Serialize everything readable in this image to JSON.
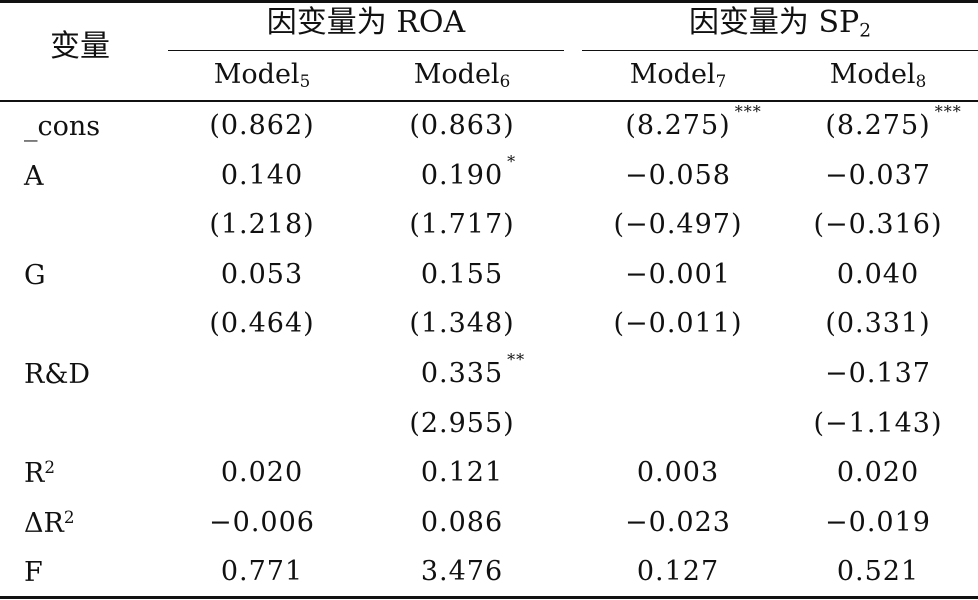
{
  "table": {
    "corner_label": "变量",
    "groups": [
      {
        "label": "因变量为 ROA",
        "sub": ""
      },
      {
        "label": "因变量为 SP",
        "sub": "2"
      }
    ],
    "models": [
      {
        "name": "Model",
        "sub": "5"
      },
      {
        "name": "Model",
        "sub": "6"
      },
      {
        "name": "Model",
        "sub": "7"
      },
      {
        "name": "Model",
        "sub": "8"
      }
    ],
    "rows": [
      {
        "label": "_cons",
        "sup": "",
        "cells": [
          {
            "v": "(0.862)",
            "star": ""
          },
          {
            "v": "(0.863)",
            "star": ""
          },
          {
            "v": "(8.275)",
            "star": "***"
          },
          {
            "v": "(8.275)",
            "star": "***"
          }
        ]
      },
      {
        "label": "A",
        "sup": "",
        "cells": [
          {
            "v": "0.140",
            "star": ""
          },
          {
            "v": "0.190",
            "star": "*"
          },
          {
            "v": "−0.058",
            "star": ""
          },
          {
            "v": "−0.037",
            "star": ""
          }
        ]
      },
      {
        "label": "",
        "sup": "",
        "cells": [
          {
            "v": "(1.218)",
            "star": ""
          },
          {
            "v": "(1.717)",
            "star": ""
          },
          {
            "v": "(−0.497)",
            "star": ""
          },
          {
            "v": "(−0.316)",
            "star": ""
          }
        ]
      },
      {
        "label": "G",
        "sup": "",
        "cells": [
          {
            "v": "0.053",
            "star": ""
          },
          {
            "v": "0.155",
            "star": ""
          },
          {
            "v": "−0.001",
            "star": ""
          },
          {
            "v": "0.040",
            "star": ""
          }
        ]
      },
      {
        "label": "",
        "sup": "",
        "cells": [
          {
            "v": "(0.464)",
            "star": ""
          },
          {
            "v": "(1.348)",
            "star": ""
          },
          {
            "v": "(−0.011)",
            "star": ""
          },
          {
            "v": "(0.331)",
            "star": ""
          }
        ]
      },
      {
        "label": "R&D",
        "sup": "",
        "cells": [
          {
            "v": "",
            "star": ""
          },
          {
            "v": "0.335",
            "star": "**"
          },
          {
            "v": "",
            "star": ""
          },
          {
            "v": "−0.137",
            "star": ""
          }
        ]
      },
      {
        "label": "",
        "sup": "",
        "cells": [
          {
            "v": "",
            "star": ""
          },
          {
            "v": "(2.955)",
            "star": ""
          },
          {
            "v": "",
            "star": ""
          },
          {
            "v": "(−1.143)",
            "star": ""
          }
        ]
      },
      {
        "label": "R",
        "sup": "2",
        "cells": [
          {
            "v": "0.020",
            "star": ""
          },
          {
            "v": "0.121",
            "star": ""
          },
          {
            "v": "0.003",
            "star": ""
          },
          {
            "v": "0.020",
            "star": ""
          }
        ]
      },
      {
        "label": "ΔR",
        "sup": "2",
        "cells": [
          {
            "v": "−0.006",
            "star": ""
          },
          {
            "v": "0.086",
            "star": ""
          },
          {
            "v": "−0.023",
            "star": ""
          },
          {
            "v": "−0.019",
            "star": ""
          }
        ]
      },
      {
        "label": "F",
        "sup": "",
        "cells": [
          {
            "v": "0.771",
            "star": ""
          },
          {
            "v": "3.476",
            "star": ""
          },
          {
            "v": "0.127",
            "star": ""
          },
          {
            "v": "0.521",
            "star": ""
          }
        ]
      }
    ]
  }
}
